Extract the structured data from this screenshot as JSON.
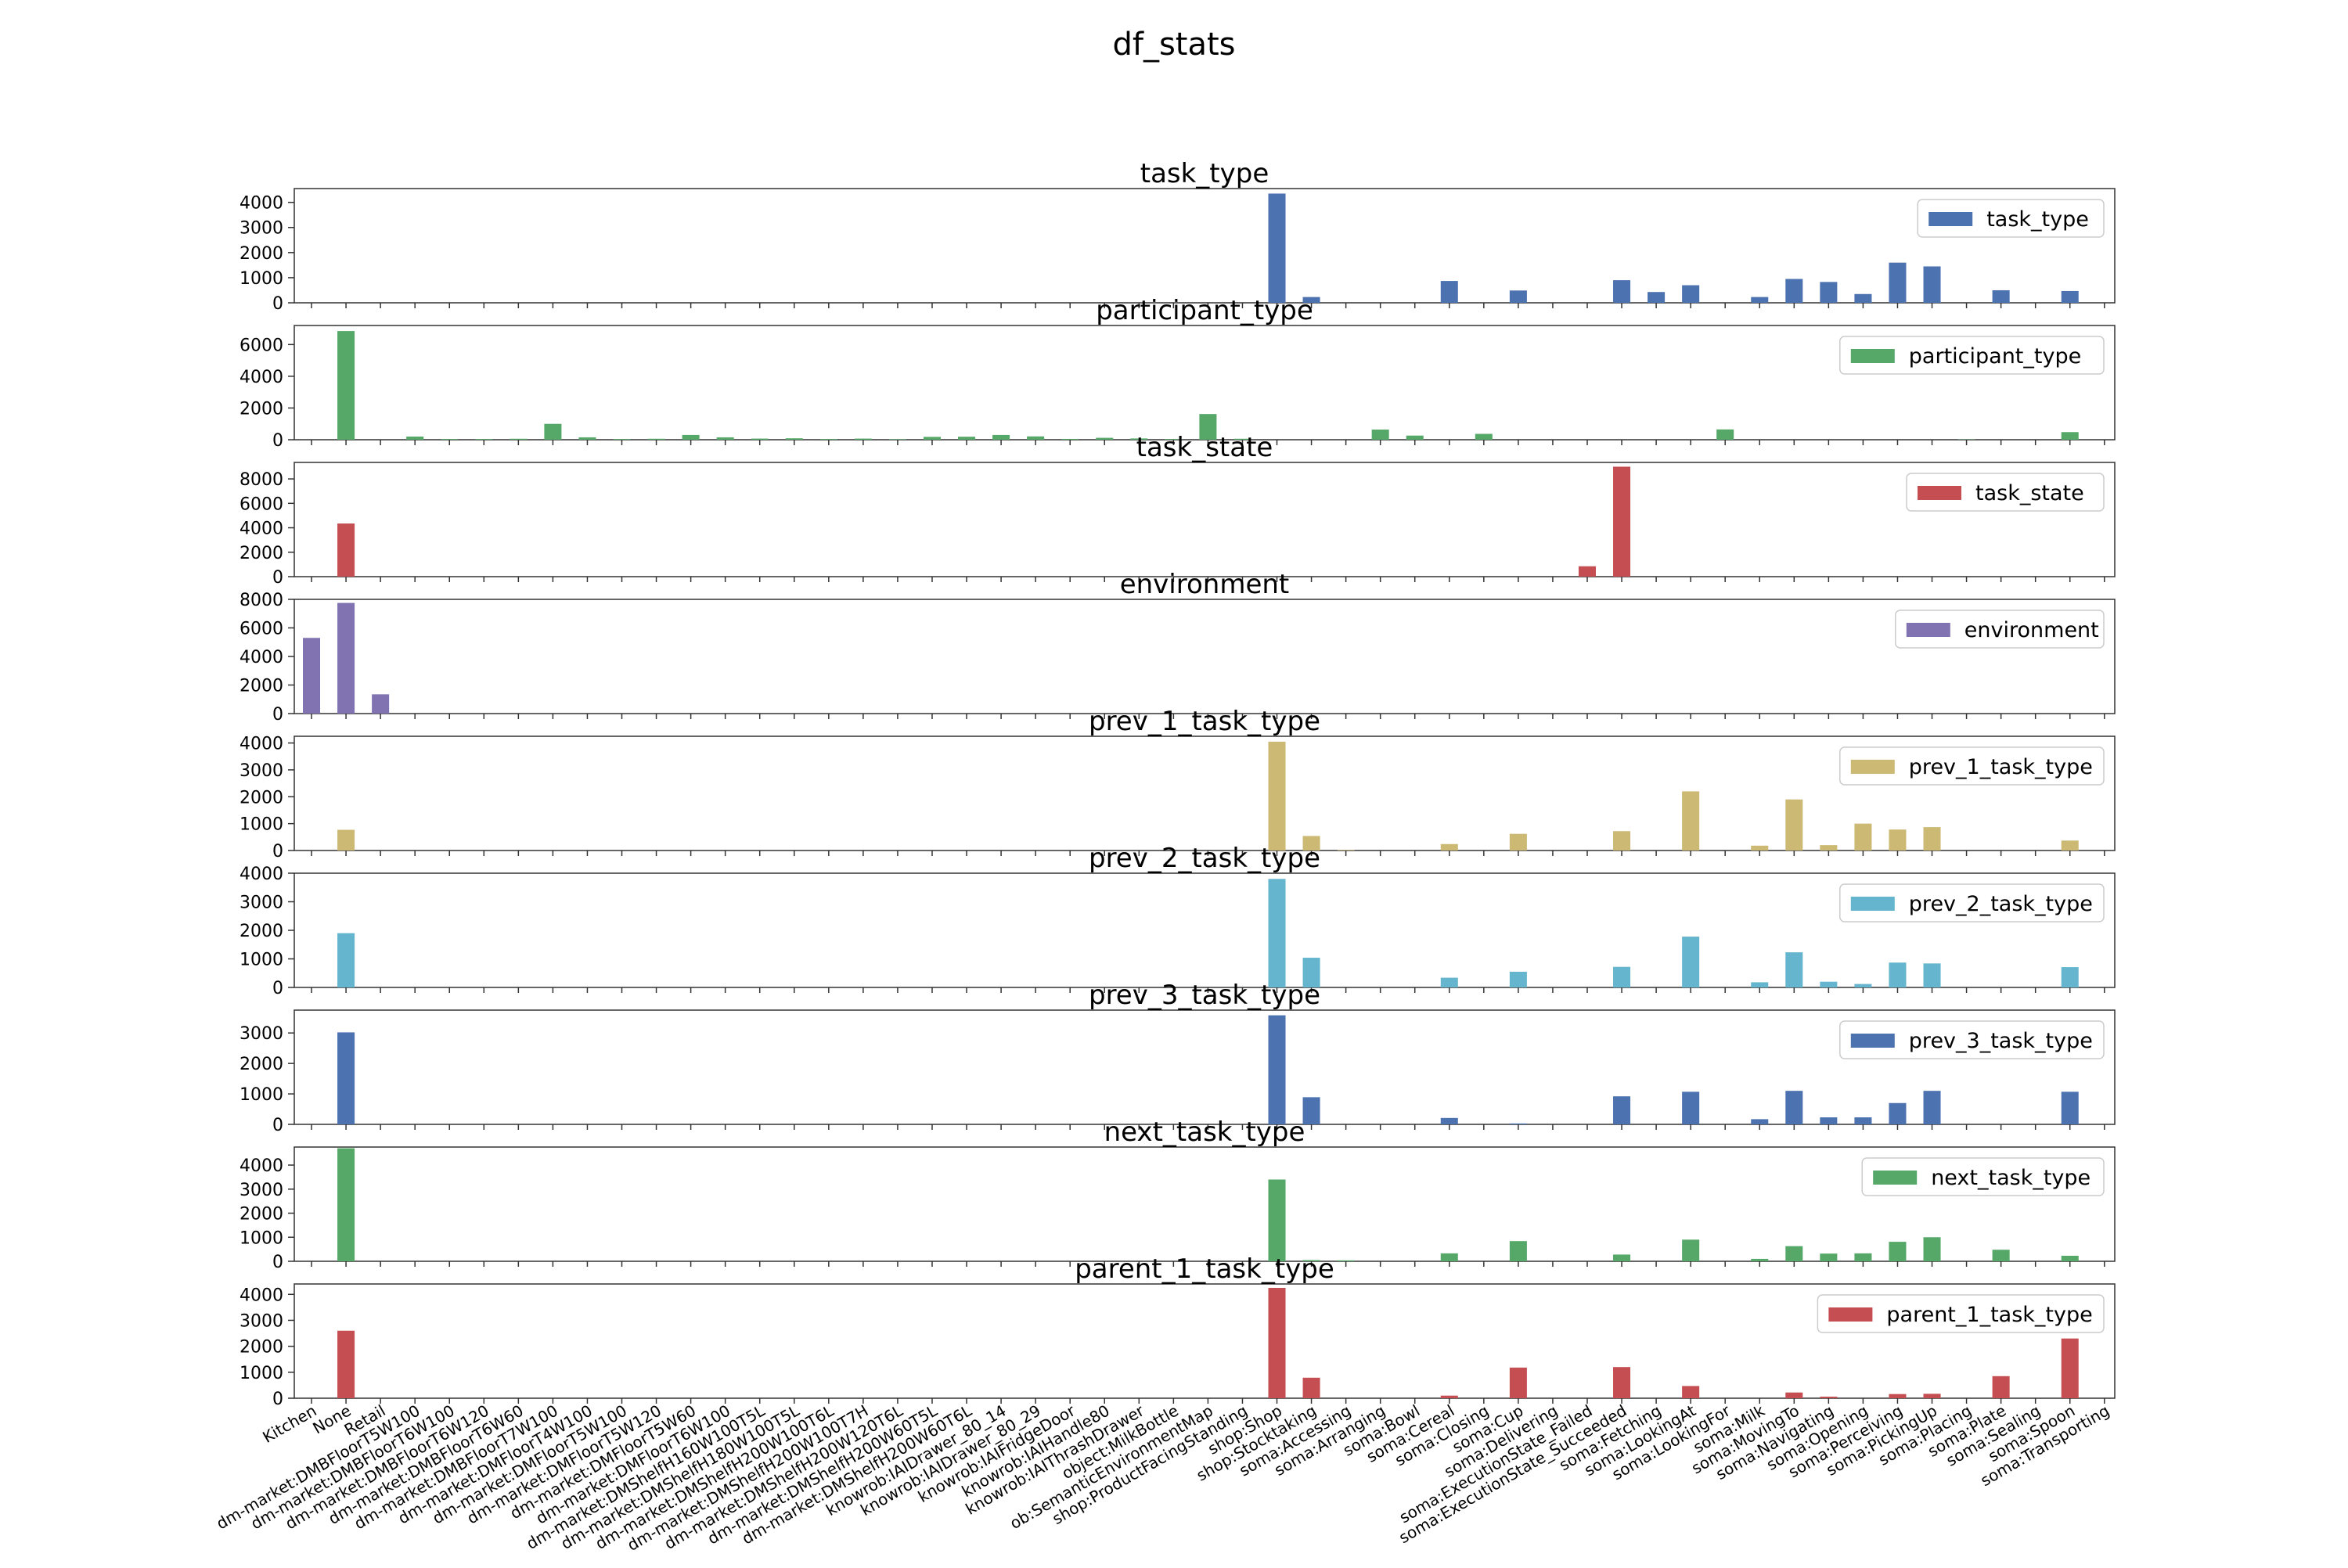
{
  "chart_data": {
    "type": "bar",
    "title": "df_stats",
    "categories": [
      "Kitchen",
      "None",
      "Retail",
      "dm-market:DMBFloorT5W100",
      "dm-market:DMBFloorT6W100",
      "dm-market:DMBFloorT6W120",
      "dm-market:DMBFloorT6W60",
      "dm-market:DMBFloorT7W100",
      "dm-market:DMFloorT4W100",
      "dm-market:DMFloorT5W100",
      "dm-market:DMFloorT5W120",
      "dm-market:DMFloorT5W60",
      "dm-market:DMFloorT6W100",
      "dm-market:DMShelfH160W100T5L",
      "dm-market:DMShelfH180W100T5L",
      "dm-market:DMShelfH200W100T6L",
      "dm-market:DMShelfH200W100T7H",
      "dm-market:DMShelfH200W120T6L",
      "dm-market:DMShelfH200W60T5L",
      "dm-market:DMShelfH200W60T6L",
      "knowrob:IAIDrawer_80_14",
      "knowrob:IAIDrawer_80_29",
      "knowrob:IAIFridgeDoor",
      "knowrob:IAIHandle80",
      "knowrob:IAIThrashDrawer",
      "object:MilkBottle",
      "ob:SemanticEnvironmentMap",
      "shop:ProductFacingStanding",
      "shop:Shop",
      "shop:Stocktaking",
      "soma:Accessing",
      "soma:Arranging",
      "soma:Bowl",
      "soma:Cereal",
      "soma:Closing",
      "soma:Cup",
      "soma:Delivering",
      "soma:ExecutionState_Failed",
      "soma:ExecutionState_Succeeded",
      "soma:Fetching",
      "soma:LookingAt",
      "soma:LookingFor",
      "soma:Milk",
      "soma:MovingTo",
      "soma:Navigating",
      "soma:Opening",
      "soma:Perceiving",
      "soma:PickingUp",
      "soma:Placing",
      "soma:Plate",
      "soma:Sealing",
      "soma:Spoon",
      "soma:Transporting"
    ],
    "series": [
      {
        "name": "task_type",
        "color": "#4c72b0",
        "ylim": [
          0,
          4550
        ],
        "yticks": [
          0,
          1000,
          2000,
          3000,
          4000
        ],
        "values": [
          0,
          0,
          0,
          0,
          0,
          0,
          0,
          0,
          0,
          0,
          0,
          0,
          0,
          0,
          0,
          0,
          0,
          0,
          0,
          0,
          0,
          0,
          0,
          0,
          0,
          0,
          0,
          0,
          4350,
          230,
          0,
          0,
          0,
          870,
          0,
          490,
          0,
          0,
          900,
          430,
          700,
          0,
          230,
          950,
          830,
          350,
          1600,
          1450,
          0,
          500,
          0,
          470,
          0
        ]
      },
      {
        "name": "participant_type",
        "color": "#55a868",
        "ylim": [
          0,
          7200
        ],
        "yticks": [
          0,
          2000,
          4000,
          6000
        ],
        "values": [
          0,
          6850,
          0,
          200,
          40,
          40,
          60,
          1000,
          150,
          40,
          60,
          300,
          150,
          70,
          90,
          40,
          70,
          30,
          180,
          190,
          300,
          210,
          50,
          120,
          80,
          40,
          1620,
          60,
          0,
          0,
          0,
          640,
          260,
          0,
          370,
          0,
          0,
          0,
          0,
          0,
          0,
          650,
          0,
          0,
          0,
          0,
          0,
          0,
          20,
          0,
          0,
          480,
          0
        ]
      },
      {
        "name": "task_state",
        "color": "#c44e52",
        "ylim": [
          0,
          9350
        ],
        "yticks": [
          0,
          2000,
          4000,
          6000,
          8000
        ],
        "values": [
          0,
          4350,
          0,
          0,
          0,
          0,
          0,
          0,
          0,
          0,
          0,
          0,
          0,
          0,
          0,
          0,
          0,
          0,
          0,
          0,
          0,
          0,
          0,
          0,
          0,
          0,
          0,
          0,
          0,
          0,
          0,
          0,
          0,
          0,
          0,
          0,
          0,
          850,
          9000,
          0,
          0,
          0,
          0,
          0,
          0,
          0,
          0,
          0,
          0,
          0,
          0,
          0,
          0
        ]
      },
      {
        "name": "environment",
        "color": "#8172b2",
        "ylim": [
          0,
          8000
        ],
        "yticks": [
          0,
          2000,
          4000,
          6000,
          8000
        ],
        "values": [
          5300,
          7750,
          1350,
          0,
          0,
          0,
          0,
          0,
          0,
          0,
          0,
          0,
          0,
          0,
          0,
          0,
          0,
          0,
          0,
          0,
          0,
          0,
          0,
          0,
          0,
          0,
          0,
          0,
          0,
          0,
          0,
          0,
          0,
          0,
          0,
          0,
          0,
          0,
          0,
          0,
          0,
          0,
          0,
          0,
          0,
          0,
          0,
          0,
          0,
          0,
          0,
          0,
          0
        ]
      },
      {
        "name": "prev_1_task_type",
        "color": "#ccb974",
        "ylim": [
          0,
          4250
        ],
        "yticks": [
          0,
          1000,
          2000,
          3000,
          4000
        ],
        "values": [
          0,
          770,
          0,
          0,
          0,
          0,
          0,
          0,
          0,
          0,
          0,
          0,
          0,
          0,
          0,
          0,
          0,
          0,
          0,
          0,
          0,
          0,
          0,
          0,
          0,
          0,
          0,
          0,
          4050,
          540,
          20,
          0,
          0,
          240,
          0,
          620,
          0,
          0,
          720,
          0,
          2200,
          0,
          180,
          1900,
          200,
          1000,
          780,
          870,
          0,
          0,
          0,
          370,
          0
        ]
      },
      {
        "name": "prev_2_task_type",
        "color": "#64b5cd",
        "ylim": [
          0,
          4000
        ],
        "yticks": [
          0,
          1000,
          2000,
          3000,
          4000
        ],
        "values": [
          0,
          1900,
          0,
          0,
          0,
          0,
          0,
          0,
          0,
          0,
          0,
          0,
          0,
          0,
          0,
          0,
          0,
          0,
          0,
          0,
          0,
          0,
          0,
          0,
          0,
          0,
          0,
          0,
          3800,
          1040,
          0,
          0,
          0,
          340,
          0,
          550,
          0,
          0,
          720,
          0,
          1780,
          0,
          180,
          1230,
          200,
          120,
          870,
          840,
          0,
          0,
          0,
          710,
          0
        ]
      },
      {
        "name": "prev_3_task_type",
        "color": "#4c72b0",
        "ylim": [
          0,
          3750
        ],
        "yticks": [
          0,
          1000,
          2000,
          3000
        ],
        "values": [
          0,
          3020,
          0,
          0,
          0,
          0,
          0,
          0,
          0,
          0,
          0,
          0,
          0,
          0,
          0,
          0,
          0,
          0,
          0,
          0,
          0,
          0,
          0,
          0,
          0,
          0,
          0,
          0,
          3580,
          890,
          0,
          0,
          0,
          210,
          0,
          30,
          0,
          0,
          920,
          0,
          1070,
          0,
          170,
          1100,
          230,
          230,
          700,
          1100,
          0,
          0,
          0,
          1070,
          0
        ]
      },
      {
        "name": "next_task_type",
        "color": "#55a868",
        "ylim": [
          0,
          4750
        ],
        "yticks": [
          0,
          1000,
          2000,
          3000,
          4000
        ],
        "values": [
          0,
          4700,
          0,
          0,
          0,
          0,
          0,
          0,
          0,
          0,
          0,
          0,
          0,
          0,
          0,
          0,
          0,
          0,
          0,
          0,
          0,
          0,
          0,
          0,
          0,
          0,
          0,
          0,
          3400,
          50,
          40,
          0,
          0,
          330,
          0,
          840,
          0,
          0,
          280,
          0,
          900,
          0,
          100,
          630,
          320,
          330,
          810,
          1000,
          0,
          480,
          0,
          230,
          0
        ]
      },
      {
        "name": "parent_1_task_type",
        "color": "#c44e52",
        "ylim": [
          0,
          4400
        ],
        "yticks": [
          0,
          1000,
          2000,
          3000,
          4000
        ],
        "values": [
          0,
          2600,
          0,
          0,
          0,
          0,
          0,
          0,
          0,
          0,
          0,
          0,
          0,
          0,
          0,
          0,
          0,
          0,
          0,
          0,
          0,
          0,
          0,
          0,
          0,
          0,
          0,
          0,
          4250,
          790,
          0,
          0,
          0,
          100,
          0,
          1180,
          0,
          0,
          1200,
          0,
          470,
          0,
          0,
          220,
          60,
          0,
          160,
          170,
          0,
          850,
          0,
          2300,
          0
        ]
      }
    ]
  }
}
